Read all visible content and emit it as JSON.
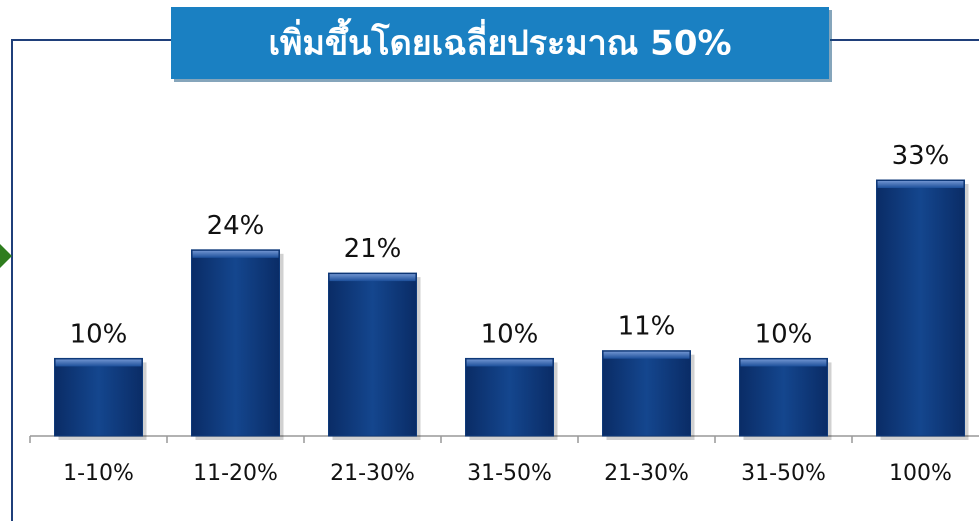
{
  "chart_data": {
    "type": "bar",
    "title": "เพิ่มขึ้นโดยเฉลี่ยประมาณ 50%",
    "categories": [
      "1-10%",
      "11-20%",
      "21-30%",
      "31-50%",
      "21-30%",
      "31-50%",
      "100%"
    ],
    "values": [
      10,
      24,
      21,
      10,
      11,
      10,
      33
    ],
    "value_labels": [
      "10%",
      "24%",
      "21%",
      "10%",
      "11%",
      "10%",
      "33%"
    ],
    "color": "#0f3a7a"
  }
}
